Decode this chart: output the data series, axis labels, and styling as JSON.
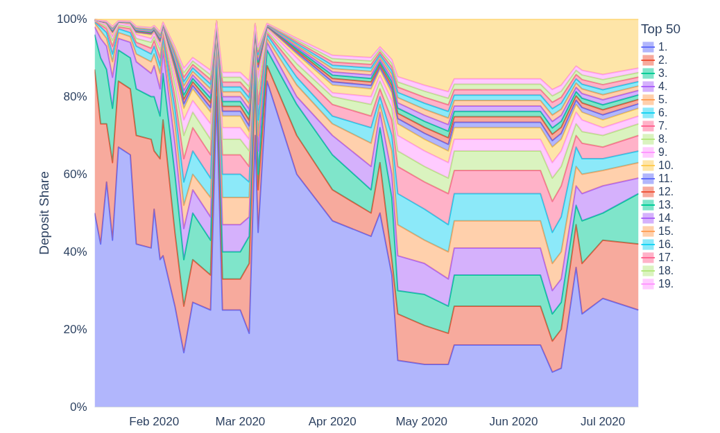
{
  "chart_data": {
    "type": "area",
    "stacked": true,
    "ylabel": "Deposit Share",
    "legend_title": "Top 50",
    "legend": "top right",
    "grid": false,
    "x": [
      "2020-01-12",
      "2020-01-14",
      "2020-01-16",
      "2020-01-18",
      "2020-01-20",
      "2020-01-24",
      "2020-01-26",
      "2020-01-31",
      "2020-02-01",
      "2020-02-03",
      "2020-02-04",
      "2020-02-08",
      "2020-02-11",
      "2020-02-14",
      "2020-02-20",
      "2020-02-22",
      "2020-02-24",
      "2020-03-01",
      "2020-03-04",
      "2020-03-06",
      "2020-03-07",
      "2020-03-10",
      "2020-03-20",
      "2020-04-01",
      "2020-04-14",
      "2020-04-17",
      "2020-04-21",
      "2020-04-23",
      "2020-05-02",
      "2020-05-10",
      "2020-05-12",
      "2020-06-10",
      "2020-06-14",
      "2020-06-17",
      "2020-06-22",
      "2020-06-24",
      "2020-07-01",
      "2020-07-13"
    ],
    "xlim": [
      "2020-01-12",
      "2020-07-13"
    ],
    "xticks": [
      {
        "value": "2020-02-01",
        "label": "Feb 2020"
      },
      {
        "value": "2020-03-01",
        "label": "Mar 2020"
      },
      {
        "value": "2020-04-01",
        "label": "Apr 2020"
      },
      {
        "value": "2020-05-01",
        "label": "May 2020"
      },
      {
        "value": "2020-06-01",
        "label": "Jun 2020"
      },
      {
        "value": "2020-07-01",
        "label": "Jul 2020"
      }
    ],
    "ylim": [
      0,
      100
    ],
    "yticks": [
      {
        "value": 0,
        "label": "0%"
      },
      {
        "value": 20,
        "label": "20%"
      },
      {
        "value": 40,
        "label": "40%"
      },
      {
        "value": 60,
        "label": "60%"
      },
      {
        "value": 80,
        "label": "80%"
      },
      {
        "value": 100,
        "label": "100%"
      }
    ],
    "series": [
      {
        "name": "1.",
        "color": "#636efa",
        "values": [
          50,
          42,
          58,
          43,
          67,
          65,
          42,
          41,
          51,
          38,
          39,
          26,
          14,
          27,
          25,
          80,
          25,
          25,
          19,
          70,
          45,
          84,
          60,
          48,
          44,
          50,
          34,
          12,
          11,
          11,
          16,
          16,
          9,
          10,
          36,
          24,
          28,
          25
        ]
      },
      {
        "name": "2.",
        "color": "#ef553b",
        "values": [
          37,
          31,
          15,
          20,
          17,
          17,
          28,
          28,
          15,
          26,
          35,
          19,
          12,
          11,
          9,
          8,
          8,
          8,
          18,
          16,
          11,
          4,
          10,
          8,
          6,
          13,
          4,
          12,
          10,
          8,
          10,
          10,
          8,
          10,
          11,
          13,
          15,
          17
        ]
      },
      {
        "name": "3.",
        "color": "#00cc96",
        "values": [
          9,
          17,
          14,
          14,
          8,
          8,
          12,
          11,
          14,
          11,
          12,
          15,
          12,
          12,
          9,
          4,
          7,
          7,
          7,
          2,
          4,
          4,
          8,
          9,
          6,
          9,
          16,
          6,
          8,
          7,
          8,
          8,
          7,
          7,
          5,
          11,
          7,
          13
        ]
      },
      {
        "name": "4.",
        "color": "#ab63fa",
        "values": [
          2,
          5,
          6,
          8,
          3,
          4,
          7,
          6,
          8,
          7,
          6,
          8,
          8,
          6,
          6,
          3,
          7,
          7,
          5,
          4,
          6,
          2,
          2,
          5,
          6,
          4,
          6,
          9,
          8,
          7,
          7,
          7,
          6,
          6,
          5,
          7,
          7,
          4
        ]
      },
      {
        "name": "5.",
        "color": "#ffa15a",
        "values": [
          1,
          2,
          2,
          4,
          1.5,
          1.5,
          2,
          3,
          3,
          4,
          2,
          5,
          6,
          4,
          5,
          1.5,
          7,
          7,
          5,
          2,
          4,
          1,
          3,
          3,
          6,
          2,
          6,
          8,
          6,
          7,
          7,
          7,
          7,
          7,
          5,
          5,
          4,
          4
        ]
      },
      {
        "name": "6.",
        "color": "#19d3f3",
        "values": [
          0.3,
          1,
          1.5,
          2,
          1,
          1,
          2,
          2,
          2,
          2,
          1.5,
          4,
          6,
          6,
          5,
          1,
          6,
          6,
          4,
          1.5,
          4,
          1,
          2,
          2,
          4,
          2,
          4,
          8,
          8,
          7,
          7,
          7,
          8,
          9,
          5,
          4,
          3,
          3
        ]
      },
      {
        "name": "7.",
        "color": "#ff6692",
        "values": [
          0.2,
          0.5,
          1,
          2,
          0.5,
          1,
          1,
          1.5,
          1.5,
          2,
          1,
          3,
          6,
          6,
          6,
          0.5,
          5,
          5,
          4,
          1,
          4,
          0.5,
          2,
          3,
          3,
          2,
          4,
          7,
          7,
          8,
          6,
          6,
          8,
          8,
          3,
          4,
          3,
          4
        ]
      },
      {
        "name": "8.",
        "color": "#b6e880",
        "values": [
          0.1,
          0.5,
          0.5,
          1.5,
          0.5,
          0.5,
          1,
          1.5,
          1,
          2,
          1,
          3,
          6,
          4,
          4,
          0.5,
          4,
          4,
          4,
          0.5,
          4,
          0.5,
          1.5,
          2,
          3,
          2,
          3,
          4,
          4,
          4,
          5,
          5,
          6,
          5,
          3,
          3,
          3,
          3
        ]
      },
      {
        "name": "9.",
        "color": "#ff97ff",
        "values": [
          0.1,
          0.2,
          0.5,
          1,
          0.5,
          0.5,
          1,
          1,
          1,
          1,
          0.5,
          2,
          4,
          3,
          4,
          0.5,
          3,
          3,
          3,
          0.5,
          3,
          0.5,
          1.5,
          1,
          2,
          1.5,
          2,
          4,
          4,
          4,
          3,
          3,
          4,
          4,
          3,
          3,
          2,
          2
        ]
      },
      {
        "name": "10.",
        "color": "#fecb52",
        "values": [
          0.1,
          0.2,
          0.5,
          1,
          0.2,
          0.5,
          0.5,
          1,
          0.5,
          1,
          0.5,
          2,
          3,
          3,
          3,
          0.2,
          3,
          3,
          2,
          0.5,
          2,
          0.5,
          1,
          2,
          2,
          1.5,
          2,
          3,
          3,
          3,
          3,
          3,
          4,
          3,
          2,
          2,
          2,
          2
        ]
      },
      {
        "name": "11.",
        "color": "#636efa",
        "values": [
          0.01,
          0.03,
          0.05,
          0.18,
          0.04,
          0.05,
          0.18,
          0.2,
          0.15,
          0.3,
          0.08,
          0.65,
          1.15,
          0.9,
          1.2,
          0.04,
          1.25,
          1.25,
          1.45,
          0.1,
          0.65,
          0.1,
          0.45,
          0.85,
          0.9,
          0.65,
          0.95,
          1.35,
          1.55,
          1.7,
          1.4,
          1.4,
          1.65,
          1.55,
          1.1,
          1.2,
          1.3,
          1.15
        ]
      },
      {
        "name": "12.",
        "color": "#ef553b",
        "values": [
          0.01,
          0.03,
          0.05,
          0.18,
          0.04,
          0.05,
          0.18,
          0.2,
          0.15,
          0.3,
          0.08,
          0.65,
          1.15,
          0.9,
          1.2,
          0.04,
          1.25,
          1.25,
          1.45,
          0.1,
          0.65,
          0.1,
          0.45,
          0.85,
          0.9,
          0.65,
          0.95,
          1.35,
          1.55,
          1.7,
          1.4,
          1.4,
          1.65,
          1.55,
          1.1,
          1.2,
          1.3,
          1.15
        ]
      },
      {
        "name": "13.",
        "color": "#00cc96",
        "values": [
          0.01,
          0.03,
          0.05,
          0.18,
          0.04,
          0.05,
          0.18,
          0.2,
          0.15,
          0.3,
          0.08,
          0.65,
          1.15,
          0.9,
          1.2,
          0.04,
          1.25,
          1.25,
          1.45,
          0.1,
          0.65,
          0.1,
          0.45,
          0.85,
          0.9,
          0.65,
          0.95,
          1.35,
          1.55,
          1.7,
          1.4,
          1.4,
          1.65,
          1.55,
          1.1,
          1.2,
          1.3,
          1.15
        ]
      },
      {
        "name": "14.",
        "color": "#ab63fa",
        "values": [
          0.01,
          0.03,
          0.05,
          0.18,
          0.04,
          0.05,
          0.18,
          0.2,
          0.15,
          0.3,
          0.08,
          0.65,
          1.15,
          0.9,
          1.2,
          0.04,
          1.25,
          1.25,
          1.45,
          0.1,
          0.65,
          0.1,
          0.45,
          0.85,
          0.9,
          0.65,
          0.95,
          1.35,
          1.55,
          1.7,
          1.4,
          1.4,
          1.65,
          1.55,
          1.1,
          1.2,
          1.3,
          1.15
        ]
      },
      {
        "name": "15.",
        "color": "#ffa15a",
        "values": [
          0.01,
          0.03,
          0.05,
          0.18,
          0.04,
          0.05,
          0.18,
          0.2,
          0.15,
          0.3,
          0.08,
          0.65,
          1.15,
          0.9,
          1.2,
          0.04,
          1.25,
          1.25,
          1.45,
          0.1,
          0.65,
          0.1,
          0.45,
          0.85,
          0.9,
          0.65,
          0.95,
          1.35,
          1.55,
          1.7,
          1.4,
          1.4,
          1.65,
          1.55,
          1.1,
          1.2,
          1.3,
          1.15
        ]
      },
      {
        "name": "16.",
        "color": "#19d3f3",
        "values": [
          0.01,
          0.03,
          0.05,
          0.18,
          0.04,
          0.05,
          0.18,
          0.2,
          0.15,
          0.3,
          0.08,
          0.65,
          1.15,
          0.9,
          1.2,
          0.04,
          1.25,
          1.25,
          1.45,
          0.1,
          0.65,
          0.1,
          0.45,
          0.85,
          0.9,
          0.65,
          0.95,
          1.35,
          1.55,
          1.7,
          1.4,
          1.4,
          1.65,
          1.55,
          1.1,
          1.2,
          1.3,
          1.15
        ]
      },
      {
        "name": "17.",
        "color": "#ff6692",
        "values": [
          0.01,
          0.03,
          0.05,
          0.18,
          0.04,
          0.05,
          0.18,
          0.2,
          0.15,
          0.3,
          0.08,
          0.65,
          1.15,
          0.9,
          1.2,
          0.04,
          1.25,
          1.25,
          1.45,
          0.1,
          0.65,
          0.1,
          0.45,
          0.85,
          0.9,
          0.65,
          0.95,
          1.35,
          1.55,
          1.7,
          1.4,
          1.4,
          1.65,
          1.55,
          1.1,
          1.2,
          1.3,
          1.15
        ]
      },
      {
        "name": "18.",
        "color": "#b6e880",
        "values": [
          0.01,
          0.03,
          0.05,
          0.18,
          0.04,
          0.05,
          0.18,
          0.2,
          0.15,
          0.3,
          0.08,
          0.65,
          1.15,
          0.9,
          1.2,
          0.04,
          1.25,
          1.25,
          1.45,
          0.1,
          0.65,
          0.1,
          0.45,
          0.85,
          0.9,
          0.65,
          0.95,
          1.35,
          1.55,
          1.7,
          1.4,
          1.4,
          1.65,
          1.55,
          1.1,
          1.2,
          1.3,
          1.15
        ]
      },
      {
        "name": "19.",
        "color": "#ff97ff",
        "values": [
          0.01,
          0.03,
          0.05,
          0.18,
          0.04,
          0.05,
          0.18,
          0.2,
          0.15,
          0.3,
          0.08,
          0.65,
          1.15,
          0.9,
          1.2,
          0.04,
          1.25,
          1.25,
          1.45,
          0.1,
          0.65,
          0.1,
          0.45,
          0.85,
          0.9,
          0.65,
          0.95,
          1.35,
          1.55,
          1.7,
          1.4,
          1.4,
          1.65,
          1.55,
          1.1,
          1.2,
          1.3,
          1.15
        ]
      },
      {
        "color": "#fecb52",
        "values": [
          0.11,
          0.33,
          0.55,
          1.88,
          0.44,
          0.55,
          1.88,
          2.2,
          1.65,
          3.3,
          0.78,
          7.15,
          12.65,
          9.9,
          13.2,
          0.44,
          13.75,
          13.75,
          15.95,
          1.1,
          7.15,
          1.1,
          4.95,
          9.35,
          9.9,
          7.15,
          10.45,
          14.85,
          17.05,
          18.7,
          15.4,
          15.4,
          18.15,
          17.05,
          12.1,
          13.2,
          14.3,
          12.65
        ]
      }
    ]
  }
}
